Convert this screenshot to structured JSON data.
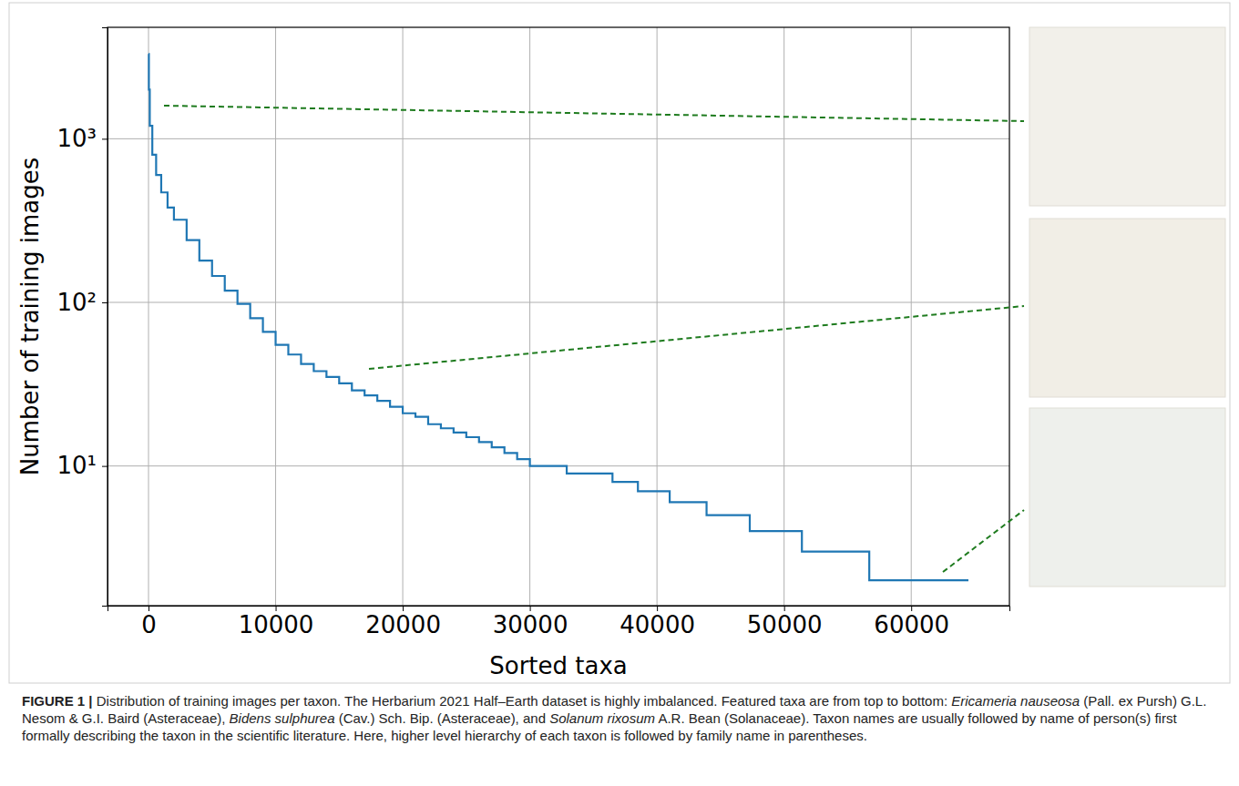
{
  "chart_data": {
    "type": "line",
    "x_label": "Sorted taxa",
    "y_label": "Number of training images",
    "x": [
      0,
      30,
      100,
      300,
      600,
      1000,
      1500,
      2000,
      3000,
      4000,
      5000,
      6000,
      7000,
      8000,
      9000,
      10000,
      11000,
      12000,
      13000,
      14000,
      15000,
      16000,
      17000,
      18000,
      19000,
      20000,
      21000,
      22000,
      23000,
      24000,
      25000,
      26000,
      27000,
      28000,
      29000,
      30000,
      32900,
      36500,
      38500,
      41000,
      43900,
      47300,
      51400,
      56700,
      64500
    ],
    "values": [
      3300,
      2000,
      1200,
      800,
      600,
      470,
      380,
      320,
      240,
      180,
      145,
      118,
      98,
      80,
      66,
      55,
      48,
      42,
      38,
      35,
      32,
      29,
      27,
      25,
      23,
      21,
      20,
      18,
      17,
      16,
      15,
      14,
      13,
      12,
      11,
      10,
      9,
      8,
      7,
      6,
      5,
      4,
      3,
      2,
      2
    ],
    "color": "#1f77b4",
    "line_style": "step",
    "log": "y",
    "grid": true,
    "xlim": [
      -3225,
      67725
    ],
    "xticks": [
      0,
      10000,
      20000,
      30000,
      40000,
      50000,
      60000
    ],
    "ylim": [
      1.4,
      4800
    ],
    "yticks": [
      {
        "value": 10,
        "label": "10¹"
      },
      {
        "value": 100,
        "label": "10²"
      },
      {
        "value": 1000,
        "label": "10³"
      }
    ],
    "caption": [
      "FIGURE 1 |",
      " Distribution of training images per taxon. The Herbarium 2021 Half–Earth dataset is highly imbalanced. Featured taxa are from top to bottom: ",
      "Ericameria nauseosa",
      " (Pall. ex Pursh) G.L. Nesom & G.I. Baird (Asteraceae), ",
      "Bidens sulphurea",
      " (Cav.) Sch. Bip. (Asteraceae), and ",
      "Solanum rixosum",
      " A.R. Bean (Solanaceae). Taxon names are usually followed by name of person(s) first formally describing the taxon in the scientific literature. Here, higher level hierarchy of each taxon is followed by family name in parentheses."
    ]
  }
}
